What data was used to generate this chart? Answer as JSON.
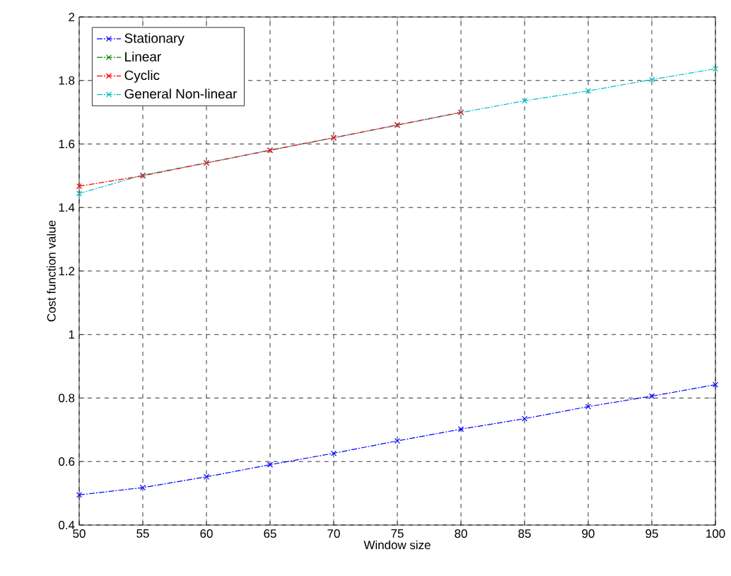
{
  "chart_data": {
    "type": "line",
    "xlabel": "Window size",
    "ylabel": "Cost function value",
    "x": [
      50,
      55,
      60,
      65,
      70,
      75,
      80,
      85,
      90,
      95,
      100
    ],
    "series": [
      {
        "name": "Stationary",
        "color": "#0000ff",
        "values": [
          0.495,
          0.518,
          0.552,
          0.59,
          0.626,
          0.665,
          0.702,
          0.735,
          0.773,
          0.806,
          0.842
        ]
      },
      {
        "name": "Linear",
        "color": "#008000",
        "values": [
          null,
          null,
          null,
          null,
          null,
          null,
          null,
          null,
          null,
          null,
          null
        ]
      },
      {
        "name": "Cyclic",
        "color": "#ff0000",
        "values": [
          1.467,
          1.5,
          1.54,
          1.58,
          1.62,
          1.66,
          1.7,
          null,
          null,
          null,
          null
        ]
      },
      {
        "name": "General Non-linear",
        "color": "#00bfbf",
        "values": [
          1.444,
          1.502,
          1.541,
          1.581,
          1.619,
          1.659,
          1.699,
          1.736,
          1.767,
          1.803,
          1.837
        ]
      }
    ],
    "xlim": [
      50,
      100
    ],
    "ylim": [
      0.4,
      2
    ],
    "xticks": [
      50,
      55,
      60,
      65,
      70,
      75,
      80,
      85,
      90,
      95,
      100
    ],
    "yticks": [
      0.4,
      0.6,
      0.8,
      1,
      1.2,
      1.4,
      1.6,
      1.8,
      2
    ],
    "grid": true,
    "legend": "top left",
    "marker": "cross",
    "line_style": "dashed"
  }
}
